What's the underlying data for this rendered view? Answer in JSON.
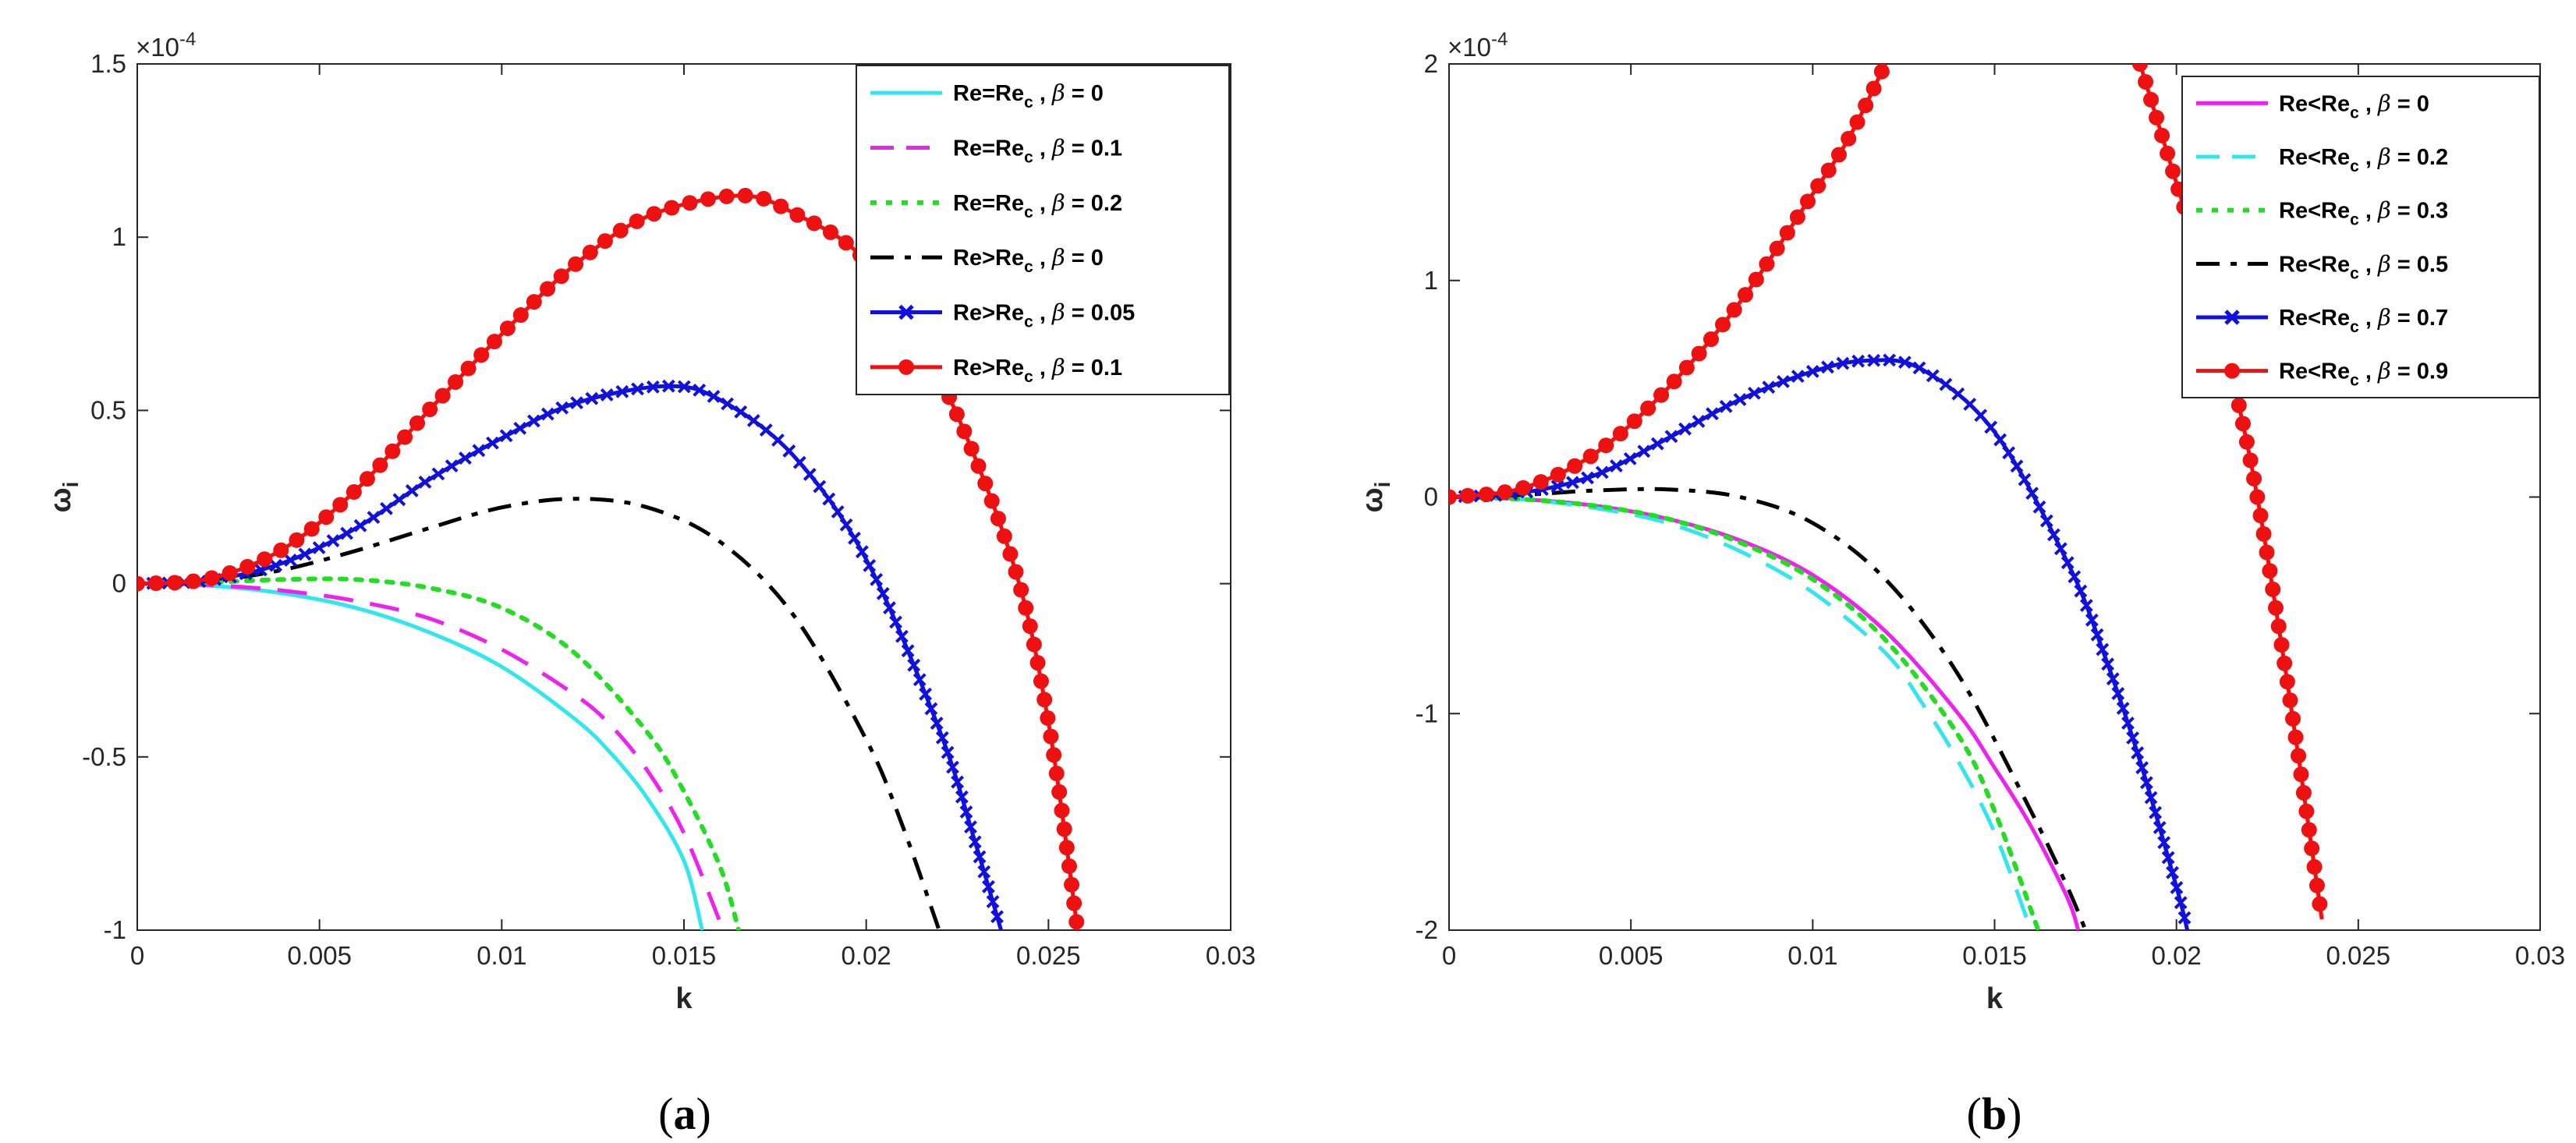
{
  "chart_data": [
    {
      "type": "line",
      "panel_label": "a",
      "xlabel": "k",
      "ylabel": "ω",
      "ylabel_sub": "i",
      "y_multiplier": "×10",
      "y_multiplier_exp": "-4",
      "xlim": [
        0,
        0.03
      ],
      "ylim": [
        -1,
        1.5
      ],
      "xticks": [
        0,
        0.005,
        0.01,
        0.015,
        0.02,
        0.025,
        0.03
      ],
      "xtick_labels": [
        "0",
        "0.005",
        "0.01",
        "0.015",
        "0.02",
        "0.025",
        "0.03"
      ],
      "yticks": [
        -1,
        -0.5,
        0,
        0.5,
        1,
        1.5
      ],
      "ytick_labels": [
        "-1",
        "-0.5",
        "0",
        "0.5",
        "1",
        "1.5"
      ],
      "legend_position": "top-right",
      "series": [
        {
          "name": "Re=Re_c , β = 0",
          "legend": {
            "pre": "Re=Re",
            "sub": "c",
            "post": " , ",
            "beta": "β",
            "val": " = 0"
          },
          "color": "#33e6ee",
          "style": "solid",
          "marker": "none",
          "x": [
            0,
            0.002,
            0.004,
            0.006,
            0.008,
            0.01,
            0.012,
            0.013,
            0.014,
            0.015,
            0.0155
          ],
          "y": [
            0,
            -0.006,
            -0.028,
            -0.07,
            -0.14,
            -0.24,
            -0.39,
            -0.49,
            -0.62,
            -0.8,
            -1.0
          ]
        },
        {
          "name": "Re=Re_c , β = 0.1",
          "legend": {
            "pre": "Re=Re",
            "sub": "c",
            "post": " , ",
            "beta": "β",
            "val": " = 0.1"
          },
          "color": "#ee22ee",
          "style": "dashed",
          "marker": "none",
          "x": [
            0,
            0.002,
            0.004,
            0.006,
            0.008,
            0.01,
            0.012,
            0.013,
            0.014,
            0.015,
            0.016
          ],
          "y": [
            0,
            -0.004,
            -0.02,
            -0.05,
            -0.1,
            -0.19,
            -0.32,
            -0.41,
            -0.54,
            -0.72,
            -0.98
          ]
        },
        {
          "name": "Re=Re_c , β = 0.2",
          "legend": {
            "pre": "Re=Re",
            "sub": "c",
            "post": " , ",
            "beta": "β",
            "val": " = 0.2"
          },
          "color": "#22dd22",
          "style": "dotted",
          "marker": "none",
          "x": [
            0,
            0.002,
            0.004,
            0.006,
            0.008,
            0.01,
            0.012,
            0.014,
            0.015,
            0.016,
            0.0165
          ],
          "y": [
            0,
            0.004,
            0.012,
            0.012,
            -0.012,
            -0.07,
            -0.2,
            -0.43,
            -0.6,
            -0.82,
            -1.0
          ]
        },
        {
          "name": "Re>Re_c , β = 0",
          "legend": {
            "pre": "Re>Re",
            "sub": "c",
            "post": " , ",
            "beta": "β",
            "val": " = 0"
          },
          "color": "#000000",
          "style": "dashdot",
          "marker": "none",
          "x": [
            0,
            0.002,
            0.004,
            0.006,
            0.008,
            0.01,
            0.012,
            0.014,
            0.016,
            0.018,
            0.02,
            0.021,
            0.022
          ],
          "y": [
            0,
            0.008,
            0.04,
            0.095,
            0.16,
            0.22,
            0.245,
            0.22,
            0.12,
            -0.09,
            -0.45,
            -0.7,
            -1.0
          ]
        },
        {
          "name": "Re>Re_c , β = 0.05",
          "legend": {
            "pre": "Re>Re",
            "sub": "c",
            "post": " , ",
            "beta": "β",
            "val": " = 0.05"
          },
          "color": "#1111dd",
          "style": "solid",
          "marker": "x",
          "x": [
            0,
            0.002,
            0.004,
            0.006,
            0.008,
            0.01,
            0.012,
            0.0145,
            0.016,
            0.018,
            0.02,
            0.022,
            0.023,
            0.0237
          ],
          "y": [
            0,
            0.01,
            0.06,
            0.16,
            0.3,
            0.42,
            0.52,
            0.57,
            0.53,
            0.37,
            0.07,
            -0.42,
            -0.75,
            -1.0
          ]
        },
        {
          "name": "Re>Re_c , β = 0.1",
          "legend": {
            "pre": "Re>Re",
            "sub": "c",
            "post": " , ",
            "beta": "β",
            "val": " = 0.1"
          },
          "color": "#ee1111",
          "style": "solid",
          "marker": "o",
          "x": [
            0,
            0.002,
            0.004,
            0.006,
            0.008,
            0.01,
            0.012,
            0.014,
            0.0165,
            0.018,
            0.02,
            0.022,
            0.024,
            0.025,
            0.0258
          ],
          "y": [
            0,
            0.015,
            0.1,
            0.27,
            0.5,
            0.72,
            0.92,
            1.06,
            1.12,
            1.07,
            0.93,
            0.6,
            0.07,
            -0.4,
            -1.0
          ]
        }
      ]
    },
    {
      "type": "line",
      "panel_label": "b",
      "xlabel": "k",
      "ylabel": "ω",
      "ylabel_sub": "i",
      "y_multiplier": "×10",
      "y_multiplier_exp": "-4",
      "xlim": [
        0,
        0.03
      ],
      "ylim": [
        -2,
        2
      ],
      "xticks": [
        0,
        0.005,
        0.01,
        0.015,
        0.02,
        0.025,
        0.03
      ],
      "xtick_labels": [
        "0",
        "0.005",
        "0.01",
        "0.015",
        "0.02",
        "0.025",
        "0.03"
      ],
      "yticks": [
        -2,
        -1,
        0,
        1,
        2
      ],
      "ytick_labels": [
        "-2",
        "-1",
        "0",
        "1",
        "2"
      ],
      "legend_position": "top-right",
      "series": [
        {
          "name": "Re<Re_c , β = 0",
          "legend": {
            "pre": "Re<Re",
            "sub": "c",
            "post": " , ",
            "beta": "β",
            "val": " = 0"
          },
          "color": "#ee22ee",
          "style": "solid",
          "marker": "none",
          "x": [
            0,
            0.002,
            0.004,
            0.006,
            0.008,
            0.01,
            0.012,
            0.014,
            0.015,
            0.016,
            0.017,
            0.0173
          ],
          "y": [
            0,
            -0.01,
            -0.04,
            -0.1,
            -0.2,
            -0.36,
            -0.62,
            -1.0,
            -1.25,
            -1.52,
            -1.85,
            -2.0
          ]
        },
        {
          "name": "Re<Re_c , β = 0.2",
          "legend": {
            "pre": "Re<Re",
            "sub": "c",
            "post": " , ",
            "beta": "β",
            "val": " = 0.2"
          },
          "color": "#33e6ee",
          "style": "dashed",
          "marker": "none",
          "x": [
            0,
            0.002,
            0.004,
            0.006,
            0.008,
            0.01,
            0.012,
            0.013,
            0.014,
            0.015,
            0.016
          ],
          "y": [
            0,
            -0.01,
            -0.05,
            -0.12,
            -0.25,
            -0.44,
            -0.72,
            -0.95,
            -1.22,
            -1.55,
            -2.0
          ]
        },
        {
          "name": "Re<Re_c , β = 0.3",
          "legend": {
            "pre": "Re<Re",
            "sub": "c",
            "post": " , ",
            "beta": "β",
            "val": " = 0.3"
          },
          "color": "#22dd22",
          "style": "dotted",
          "marker": "none",
          "x": [
            0,
            0.002,
            0.004,
            0.006,
            0.008,
            0.01,
            0.012,
            0.014,
            0.015,
            0.0162
          ],
          "y": [
            0,
            -0.01,
            -0.04,
            -0.1,
            -0.21,
            -0.38,
            -0.66,
            -1.1,
            -1.45,
            -2.0
          ]
        },
        {
          "name": "Re<Re_c , β = 0.5",
          "legend": {
            "pre": "Re<Re",
            "sub": "c",
            "post": " , ",
            "beta": "β",
            "val": " = 0.5"
          },
          "color": "#000000",
          "style": "dashdot",
          "marker": "none",
          "x": [
            0,
            0.002,
            0.004,
            0.006,
            0.008,
            0.01,
            0.012,
            0.014,
            0.016,
            0.017,
            0.0175
          ],
          "y": [
            0,
            0.01,
            0.03,
            0.035,
            0.0,
            -0.12,
            -0.38,
            -0.82,
            -1.45,
            -1.8,
            -2.0
          ]
        },
        {
          "name": "Re<Re_c , β = 0.7",
          "legend": {
            "pre": "Re<Re",
            "sub": "c",
            "post": " , ",
            "beta": "β",
            "val": " = 0.7"
          },
          "color": "#1111dd",
          "style": "solid",
          "marker": "x",
          "x": [
            0,
            0.002,
            0.004,
            0.006,
            0.008,
            0.01,
            0.0115,
            0.013,
            0.015,
            0.017,
            0.018,
            0.019,
            0.02,
            0.0203
          ],
          "y": [
            0,
            0.02,
            0.1,
            0.27,
            0.45,
            0.58,
            0.63,
            0.59,
            0.3,
            -0.3,
            -0.72,
            -1.22,
            -1.8,
            -2.0
          ]
        },
        {
          "name": "Re<Re_c , β = 0.9",
          "legend": {
            "pre": "Re<Re",
            "sub": "c",
            "post": " , ",
            "beta": "β",
            "val": " = 0.9"
          },
          "color": "#ee1111",
          "style": "solid",
          "marker": "o",
          "x": [
            0,
            0.002,
            0.004,
            0.006,
            0.008,
            0.01,
            0.011,
            0.012,
            "gap",
            0.019,
            0.02,
            0.021,
            0.022,
            0.023,
            0.024
          ],
          "y": [
            0,
            0.04,
            0.2,
            0.5,
            0.9,
            1.4,
            1.66,
            2.0,
            "gap",
            2.0,
            1.45,
            0.9,
            0.2,
            -0.8,
            -1.95
          ]
        }
      ]
    }
  ]
}
